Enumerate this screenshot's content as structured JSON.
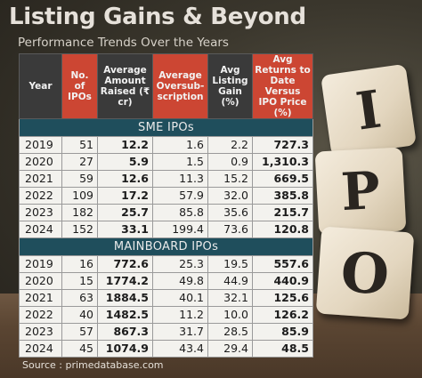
{
  "title": "Listing Gains & Beyond",
  "subtitle": "Performance Trends Over the Years",
  "headers": {
    "year": "Year",
    "ipos": "No. of IPOs",
    "amount": "Average Amount Raised (₹ cr)",
    "oversub": "Average Oversub-scription",
    "listing": "Avg Listing Gain (%)",
    "returns": "Avg Returns to Date Versus IPO Price (%)"
  },
  "sme_label": "SME IPOs",
  "mainboard_label": "MAINBOARD IPOs",
  "sme_rows": [
    {
      "year": "2019",
      "ipos": "51",
      "amount": "12.2",
      "oversub": "1.6",
      "listing": "2.2",
      "returns": "727.3"
    },
    {
      "year": "2020",
      "ipos": "27",
      "amount": "5.9",
      "oversub": "1.5",
      "listing": "0.9",
      "returns": "1,310.3"
    },
    {
      "year": "2021",
      "ipos": "59",
      "amount": "12.6",
      "oversub": "11.3",
      "listing": "15.2",
      "returns": "669.5"
    },
    {
      "year": "2022",
      "ipos": "109",
      "amount": "17.2",
      "oversub": "57.9",
      "listing": "32.0",
      "returns": "385.8"
    },
    {
      "year": "2023",
      "ipos": "182",
      "amount": "25.7",
      "oversub": "85.8",
      "listing": "35.6",
      "returns": "215.7"
    },
    {
      "year": "2024",
      "ipos": "152",
      "amount": "33.1",
      "oversub": "199.4",
      "listing": "73.6",
      "returns": "120.8"
    }
  ],
  "mainboard_rows": [
    {
      "year": "2019",
      "ipos": "16",
      "amount": "772.6",
      "oversub": "25.3",
      "listing": "19.5",
      "returns": "557.6"
    },
    {
      "year": "2020",
      "ipos": "15",
      "amount": "1774.2",
      "oversub": "49.8",
      "listing": "44.9",
      "returns": "440.9"
    },
    {
      "year": "2021",
      "ipos": "63",
      "amount": "1884.5",
      "oversub": "40.1",
      "listing": "32.1",
      "returns": "125.6"
    },
    {
      "year": "2022",
      "ipos": "40",
      "amount": "1482.5",
      "oversub": "11.2",
      "listing": "10.0",
      "returns": "126.2"
    },
    {
      "year": "2023",
      "ipos": "57",
      "amount": "867.3",
      "oversub": "31.7",
      "listing": "28.5",
      "returns": "85.9"
    },
    {
      "year": "2024",
      "ipos": "45",
      "amount": "1074.9",
      "oversub": "43.4",
      "listing": "29.4",
      "returns": "48.5"
    }
  ],
  "source": "Source : primedatabase.com",
  "dice": [
    "I",
    "P",
    "O"
  ],
  "colors": {
    "header_dark": "#3a3a3a",
    "header_red": "#cc4633",
    "section_band": "#1f4e5c",
    "cell_bg": "#f3f2ee"
  }
}
